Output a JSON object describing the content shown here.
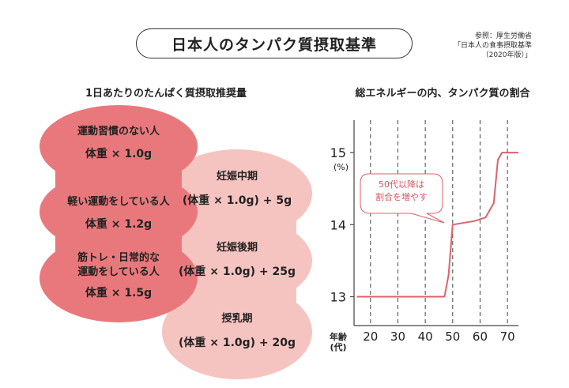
{
  "title": "日本人のタンパク質摂取基準",
  "reference": [
    "参照：厚生労働省",
    "「日本人の食事摂取基準",
    "（2020年版）」"
  ],
  "left_section": {
    "title": "1日あたりのたんぱく質摂取推奨量",
    "groups_red": [
      {
        "label": "運動習慣のない人",
        "value": "体重 × 1.0g"
      },
      {
        "label": "軽い運動をしている人",
        "value": "体重 × 1.2g"
      },
      {
        "label": "筋トレ・日常的な\n運動をしている人",
        "value": "体重 × 1.5g"
      }
    ],
    "groups_pink": [
      {
        "label": "妊娠中期",
        "value": "(体重 × 1.0g) + 5g"
      },
      {
        "label": "妊娠後期",
        "value": "(体重 × 1.0g) + 25g"
      },
      {
        "label": "授乳期",
        "value": "(体重 × 1.0g) + 20g"
      }
    ],
    "colors": {
      "red_blob": "#e9787c",
      "pink_blob": "#f6c4c0"
    }
  },
  "right_section": {
    "title": "総エネルギーの内、タンパク質の割合",
    "callout": "50代以降は\n割合を増やす",
    "colors": {
      "line": "#e0606a",
      "axis": "#444444",
      "grid": "#444444"
    }
  },
  "chart_data": {
    "type": "line",
    "title": "総エネルギーの内、タンパク質の割合",
    "ylabel": "(%)",
    "xlabel": "年齢\n(代)",
    "x_ticks": [
      20,
      30,
      40,
      50,
      60,
      70
    ],
    "y_ticks": [
      13,
      14,
      15
    ],
    "xlim": [
      14,
      74
    ],
    "ylim": [
      12.6,
      15.45
    ],
    "grid": "vertical dashed",
    "series": [
      {
        "x": [
          15,
          40,
          47,
          48.5,
          50,
          58,
          62,
          65,
          66.5,
          68,
          74
        ],
        "y": [
          13,
          13,
          13.0,
          13.3,
          14.0,
          14.05,
          14.1,
          14.3,
          14.9,
          15.0,
          15.0
        ]
      }
    ]
  }
}
